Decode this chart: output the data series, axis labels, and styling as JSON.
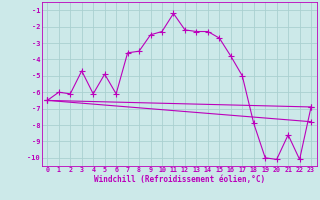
{
  "xlabel": "Windchill (Refroidissement éolien,°C)",
  "xlim": [
    -0.5,
    23.5
  ],
  "ylim": [
    -10.5,
    -0.5
  ],
  "yticks": [
    -1,
    -2,
    -3,
    -4,
    -5,
    -6,
    -7,
    -8,
    -9,
    -10
  ],
  "xticks": [
    0,
    1,
    2,
    3,
    4,
    5,
    6,
    7,
    8,
    9,
    10,
    11,
    12,
    13,
    14,
    15,
    16,
    17,
    18,
    19,
    20,
    21,
    22,
    23
  ],
  "background_color": "#cce9e9",
  "grid_color": "#aad0d0",
  "line_color": "#bb00bb",
  "series1_x": [
    0,
    1,
    2,
    3,
    4,
    5,
    6,
    7,
    8,
    9,
    10,
    11,
    12,
    13,
    14,
    15,
    16,
    17,
    18,
    19,
    20,
    21,
    22,
    23
  ],
  "series1_y": [
    -6.5,
    -6.0,
    -6.1,
    -4.7,
    -6.1,
    -4.9,
    -6.1,
    -3.6,
    -3.5,
    -2.5,
    -2.3,
    -1.2,
    -2.2,
    -2.3,
    -2.3,
    -2.7,
    -3.8,
    -5.0,
    -7.9,
    -10.0,
    -10.1,
    -8.6,
    -10.1,
    -6.9
  ],
  "series2_x": [
    0,
    23
  ],
  "series2_y": [
    -6.5,
    -6.9
  ],
  "series3_x": [
    0,
    23
  ],
  "series3_y": [
    -6.5,
    -7.8
  ],
  "marker": "+",
  "markersize": 4,
  "linewidth": 0.8
}
